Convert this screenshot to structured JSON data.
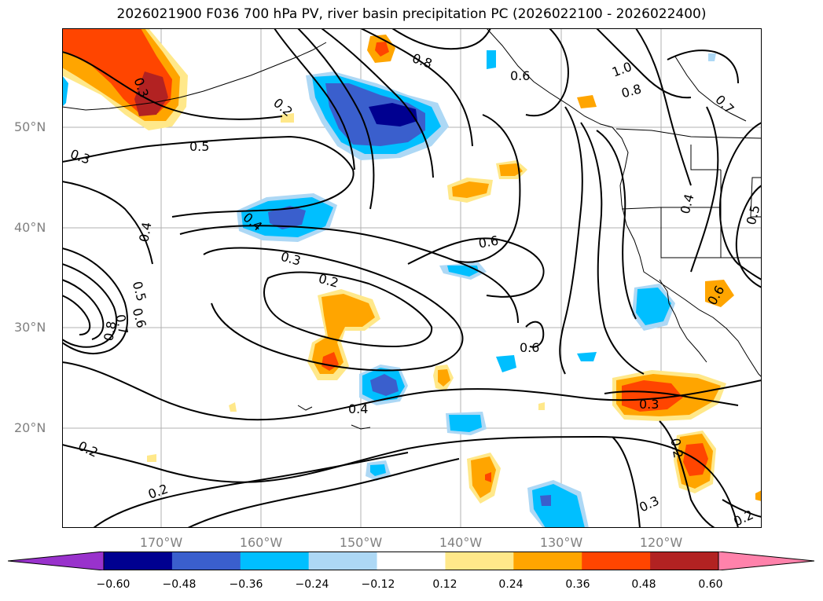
{
  "title": "2026021900 F036 700 hPa PV, river basin precipitation PC (2026022100 - 2026022400)",
  "lat_labels": [
    "50°N",
    "40°N",
    "30°N",
    "20°N"
  ],
  "lon_labels": [
    "170°W",
    "160°W",
    "150°W",
    "140°W",
    "130°W",
    "120°W"
  ],
  "colorbar": {
    "ticks": [
      "−0.60",
      "−0.48",
      "−0.36",
      "−0.24",
      "−0.12",
      "0.12",
      "0.24",
      "0.36",
      "0.48",
      "0.60"
    ],
    "colors": [
      "#9932cc",
      "#000090",
      "#3a5fcd",
      "#00bfff",
      "#add8f5",
      "#ffffff",
      "#ffe88a",
      "#ffa500",
      "#ff4500",
      "#b22222",
      "#ff82ab"
    ]
  },
  "contour_labels": [
    "0.3",
    "0.2",
    "0.8",
    "0.6",
    "1.0",
    "0.8",
    "0.7",
    "0.3",
    "0.5",
    "0.4",
    "0.4",
    "0.3",
    "0.6",
    "0.2",
    "0.5",
    "0.6",
    "0.7",
    "0.8",
    "0.4",
    "0.6",
    "0.3",
    "0.2",
    "0.2",
    "0.2",
    "0.3",
    "0.2",
    "0.4",
    "0.5",
    "0.6"
  ]
}
